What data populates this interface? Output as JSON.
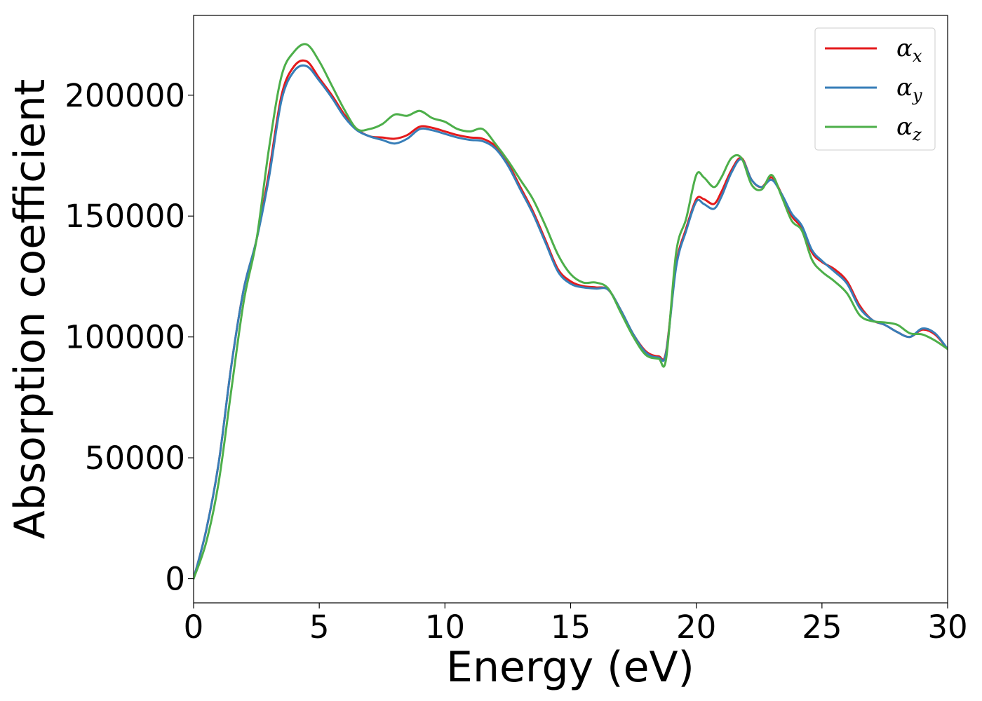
{
  "chart_data": {
    "type": "line",
    "xlabel": "Energy (eV)",
    "ylabel": "Absorption coefficient",
    "xlim": [
      0,
      30
    ],
    "ylim": [
      -10000,
      233000
    ],
    "xticks": [
      0,
      5,
      10,
      15,
      20,
      25,
      30
    ],
    "xtick_labels": [
      "0",
      "5",
      "10",
      "15",
      "20",
      "25",
      "30"
    ],
    "yticks": [
      0,
      50000,
      100000,
      150000,
      200000
    ],
    "ytick_labels": [
      "0",
      "50000",
      "100000",
      "150000",
      "200000"
    ],
    "grid": false,
    "legend_position": "top-right",
    "series": [
      {
        "name": "αx",
        "symbol": "α",
        "subscript": "x",
        "color": "#e41a1c",
        "x": [
          0,
          0.5,
          1,
          1.5,
          2,
          2.5,
          3,
          3.5,
          4,
          4.5,
          5,
          5.5,
          6,
          6.5,
          7,
          7.5,
          8,
          8.5,
          9,
          9.5,
          10,
          10.5,
          11,
          11.5,
          12,
          12.5,
          13,
          13.5,
          14,
          14.5,
          15,
          15.5,
          16,
          16.5,
          17,
          17.5,
          18,
          18.5,
          18.8,
          19.2,
          19.6,
          20,
          20.3,
          20.7,
          21,
          21.4,
          21.8,
          22.2,
          22.6,
          23,
          23.4,
          23.8,
          24.2,
          24.6,
          25,
          25.5,
          26,
          26.5,
          27,
          27.5,
          28,
          28.5,
          29,
          29.5,
          30
        ],
        "y": [
          0,
          20000,
          48000,
          88000,
          120000,
          140000,
          168000,
          200000,
          212000,
          214000,
          207000,
          200000,
          192000,
          186000,
          183000,
          182500,
          182000,
          183500,
          187000,
          186500,
          185000,
          183500,
          182500,
          182000,
          179000,
          172000,
          162000,
          152000,
          140000,
          128000,
          123000,
          121000,
          120500,
          119500,
          111000,
          101000,
          94000,
          92000,
          94000,
          130000,
          145000,
          157000,
          157000,
          155000,
          160000,
          169000,
          174000,
          165000,
          162000,
          166000,
          159000,
          150000,
          145000,
          135000,
          131000,
          128000,
          123000,
          113000,
          107000,
          105000,
          102000,
          100000,
          103000,
          101000,
          95000
        ]
      },
      {
        "name": "αy",
        "symbol": "α",
        "subscript": "y",
        "color": "#377eb8",
        "x": [
          0,
          0.5,
          1,
          1.5,
          2,
          2.5,
          3,
          3.5,
          4,
          4.5,
          5,
          5.5,
          6,
          6.5,
          7,
          7.5,
          8,
          8.5,
          9,
          9.5,
          10,
          10.5,
          11,
          11.5,
          12,
          12.5,
          13,
          13.5,
          14,
          14.5,
          15,
          15.5,
          16,
          16.5,
          17,
          17.5,
          18,
          18.5,
          18.8,
          19.2,
          19.6,
          20,
          20.3,
          20.7,
          21,
          21.4,
          21.8,
          22.2,
          22.6,
          23,
          23.4,
          23.8,
          24.2,
          24.6,
          25,
          25.5,
          26,
          26.5,
          27,
          27.5,
          28,
          28.5,
          29,
          29.5,
          30
        ],
        "y": [
          0,
          20000,
          48000,
          88000,
          120000,
          140000,
          166000,
          198000,
          210000,
          212000,
          206000,
          199000,
          191000,
          185500,
          183000,
          181500,
          180000,
          182000,
          186000,
          185500,
          184000,
          182500,
          181500,
          181000,
          178000,
          171000,
          161000,
          151000,
          139000,
          127000,
          122000,
          120500,
          120000,
          119500,
          111000,
          101000,
          93500,
          91500,
          93500,
          129000,
          144000,
          156000,
          155000,
          153000,
          158000,
          168000,
          173500,
          165000,
          162000,
          165000,
          159000,
          151000,
          146000,
          136000,
          131500,
          127000,
          122000,
          112000,
          107000,
          105000,
          102000,
          100000,
          103500,
          101500,
          95000
        ]
      },
      {
        "name": "αz",
        "symbol": "α",
        "subscript": "z",
        "color": "#4daf4a",
        "x": [
          0,
          0.5,
          1,
          1.5,
          2,
          2.5,
          3,
          3.5,
          4,
          4.5,
          5,
          5.5,
          6,
          6.5,
          7,
          7.5,
          8,
          8.5,
          9,
          9.5,
          10,
          10.5,
          11,
          11.5,
          12,
          12.5,
          13,
          13.5,
          14,
          14.5,
          15,
          15.5,
          16,
          16.5,
          17,
          17.5,
          18,
          18.5,
          18.8,
          19.2,
          19.6,
          20,
          20.3,
          20.7,
          21,
          21.4,
          21.8,
          22.2,
          22.6,
          23,
          23.4,
          23.8,
          24.2,
          24.6,
          25,
          25.5,
          26,
          26.5,
          27,
          27.5,
          28,
          28.5,
          29,
          29.5,
          30
        ],
        "y": [
          0,
          15000,
          40000,
          78000,
          115000,
          140000,
          178000,
          208000,
          218000,
          221000,
          214000,
          204000,
          194000,
          186000,
          186000,
          188000,
          192000,
          191500,
          193500,
          190500,
          189000,
          186000,
          185000,
          186000,
          180000,
          173000,
          165000,
          157000,
          146000,
          134000,
          126000,
          122500,
          122500,
          120000,
          110000,
          100000,
          92500,
          91000,
          91000,
          135000,
          149000,
          167000,
          166000,
          162000,
          166000,
          174000,
          174000,
          163000,
          161000,
          167000,
          158000,
          148000,
          144000,
          132000,
          127000,
          123000,
          118000,
          109000,
          106500,
          106000,
          105000,
          101500,
          101000,
          98500,
          95000
        ]
      }
    ]
  }
}
